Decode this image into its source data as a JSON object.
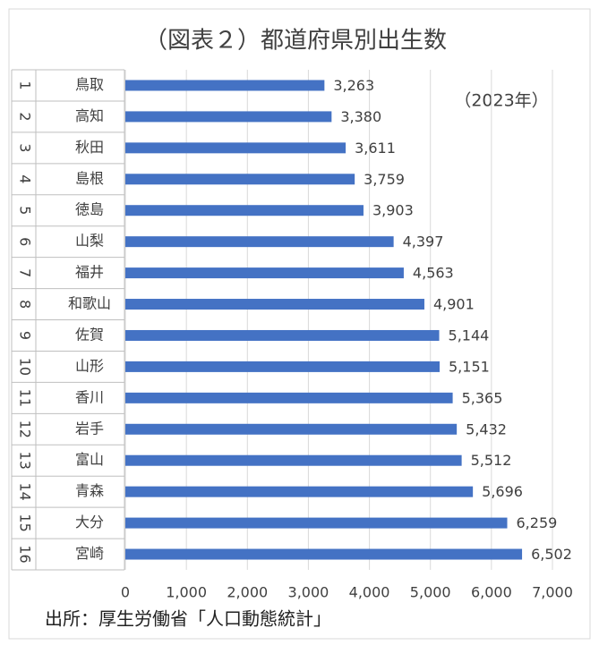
{
  "chart_data": {
    "type": "bar",
    "orientation": "horizontal",
    "title": "（図表２）都道府県別出生数",
    "annotation": "（2023年）",
    "source": "出所：厚生労働省「人口動態統計」",
    "ranks": [
      "1",
      "2",
      "3",
      "4",
      "5",
      "6",
      "7",
      "8",
      "9",
      "10",
      "11",
      "12",
      "13",
      "14",
      "15",
      "16"
    ],
    "categories": [
      "鳥取",
      "高知",
      "秋田",
      "島根",
      "徳島",
      "山梨",
      "福井",
      "和歌山",
      "佐賀",
      "山形",
      "香川",
      "岩手",
      "富山",
      "青森",
      "大分",
      "宮崎"
    ],
    "values": [
      3263,
      3380,
      3611,
      3759,
      3903,
      4397,
      4563,
      4901,
      5144,
      5151,
      5365,
      5432,
      5512,
      5696,
      6259,
      6502
    ],
    "value_labels": [
      "3,263",
      "3,380",
      "3,611",
      "3,759",
      "3,903",
      "4,397",
      "4,563",
      "4,901",
      "5,144",
      "5,151",
      "5,365",
      "5,432",
      "5,512",
      "5,696",
      "6,259",
      "6,502"
    ],
    "color": "#4472c4",
    "xlim": [
      0,
      7000
    ],
    "xticks": [
      0,
      {
        "value": 1000,
        "label": "1,000"
      },
      {
        "value": 2000,
        "label": "2,000"
      },
      {
        "value": 3000,
        "label": "3,000"
      },
      {
        "value": 4000,
        "label": "4,000"
      },
      {
        "value": 5000,
        "label": "5,000"
      },
      {
        "value": 6000,
        "label": "6,000"
      },
      {
        "value": 7000,
        "label": "7,000"
      }
    ],
    "grid": true
  }
}
